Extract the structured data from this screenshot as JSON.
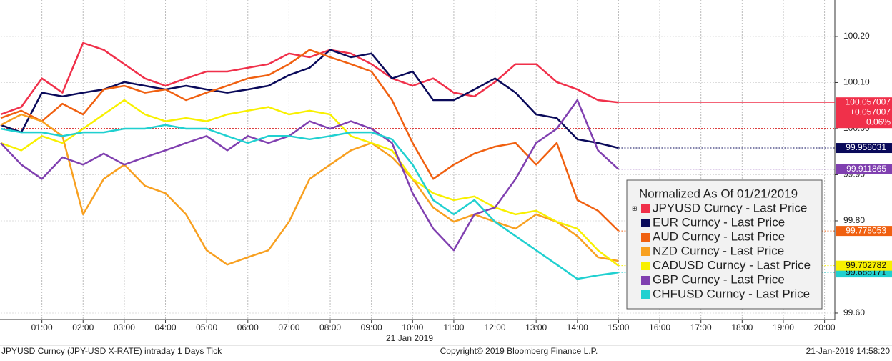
{
  "chart_data": {
    "type": "line",
    "x_axis_label": "21 Jan 2019",
    "legend_title": "Normalized As Of 01/21/2019",
    "legend_position": "lower right",
    "grid": true,
    "reference_lines": [
      100
    ],
    "change_labels": [
      "+0.057007",
      "0.06%"
    ],
    "footer_left": "JPYUSD Curncy (JPY-USD X-RATE) intraday 1 Days  Tick",
    "footer_center": "Copyright© 2019 Bloomberg Finance L.P.",
    "footer_right": "21-Jan-2019 14:58:20",
    "xlim": [
      0,
      20.25
    ],
    "xticks": [
      {
        "value": 1,
        "label": "01:00"
      },
      {
        "value": 2,
        "label": "02:00"
      },
      {
        "value": 3,
        "label": "03:00"
      },
      {
        "value": 4,
        "label": "04:00"
      },
      {
        "value": 5,
        "label": "05:00"
      },
      {
        "value": 6,
        "label": "06:00"
      },
      {
        "value": 7,
        "label": "07:00"
      },
      {
        "value": 8,
        "label": "08:00"
      },
      {
        "value": 9,
        "label": "09:00"
      },
      {
        "value": 10,
        "label": "10:00"
      },
      {
        "value": 11,
        "label": "11:00"
      },
      {
        "value": 12,
        "label": "12:00"
      },
      {
        "value": 13,
        "label": "13:00"
      },
      {
        "value": 14,
        "label": "14:00"
      },
      {
        "value": 15,
        "label": "15:00"
      },
      {
        "value": 16,
        "label": "16:00"
      },
      {
        "value": 17,
        "label": "17:00"
      },
      {
        "value": 18,
        "label": "18:00"
      },
      {
        "value": 19,
        "label": "19:00"
      },
      {
        "value": 20,
        "label": "20:00"
      }
    ],
    "ylim": [
      99.586,
      100.279
    ],
    "yticks": [
      {
        "value": 99.6,
        "label": "99.60"
      },
      {
        "value": 99.7,
        "label": "99.70"
      },
      {
        "value": 99.8,
        "label": "99.80"
      },
      {
        "value": 99.9,
        "label": "99.90"
      },
      {
        "value": 100,
        "label": "100.00"
      },
      {
        "value": 100.1,
        "label": "100.10"
      },
      {
        "value": 100.2,
        "label": "100.20"
      }
    ],
    "x": [
      0,
      0.5,
      1,
      1.5,
      2,
      2.5,
      3,
      3.5,
      4,
      4.5,
      5,
      5.5,
      6,
      6.5,
      7,
      7.5,
      8,
      8.5,
      9,
      9.5,
      10,
      10.5,
      11,
      11.5,
      12,
      12.5,
      13,
      13.5,
      14,
      14.5,
      15
    ],
    "series": [
      {
        "name": "JPYUSD Curncy - Last Price",
        "color": "#f0304a",
        "last_label": "100.057007",
        "values": [
          100.031,
          100.047,
          100.109,
          100.078,
          100.186,
          100.171,
          100.14,
          100.109,
          100.093,
          100.109,
          100.124,
          100.124,
          100.132,
          100.14,
          100.163,
          100.155,
          100.171,
          100.163,
          100.14,
          100.109,
          100.093,
          100.109,
          100.078,
          100.07,
          100.101,
          100.14,
          100.14,
          100.101,
          100.085,
          100.062,
          100.057007
        ]
      },
      {
        "name": "EUR Curncy - Last Price",
        "color": "#0a0a5a",
        "last_label": "99.958031",
        "values": [
          100.008,
          99.992,
          100.078,
          100.07,
          100.078,
          100.085,
          100.101,
          100.093,
          100.085,
          100.093,
          100.085,
          100.078,
          100.085,
          100.093,
          100.116,
          100.132,
          100.171,
          100.155,
          100.163,
          100.109,
          100.124,
          100.062,
          100.062,
          100.085,
          100.109,
          100.078,
          100.031,
          100.023,
          99.977,
          99.969,
          99.958031
        ]
      },
      {
        "name": "AUD Curncy - Last Price",
        "color": "#f06010",
        "last_label": "99.778053",
        "values": [
          100.023,
          100.039,
          100.016,
          100.054,
          100.031,
          100.085,
          100.093,
          100.078,
          100.085,
          100.062,
          100.078,
          100.093,
          100.109,
          100.116,
          100.14,
          100.171,
          100.155,
          100.14,
          100.124,
          100.062,
          99.969,
          99.891,
          99.922,
          99.946,
          99.961,
          99.969,
          99.922,
          99.969,
          99.845,
          99.822,
          99.778053
        ]
      },
      {
        "name": "NZD Curncy - Last Price",
        "color": "#f8a020",
        "values": [
          100.008,
          100.031,
          100.016,
          99.984,
          99.814,
          99.891,
          99.922,
          99.876,
          99.86,
          99.814,
          99.736,
          99.705,
          99.721,
          99.736,
          99.798,
          99.891,
          99.922,
          99.953,
          99.969,
          99.938,
          99.891,
          99.829,
          99.798,
          99.814,
          99.798,
          99.783,
          99.814,
          99.798,
          99.767,
          99.721,
          99.713
        ]
      },
      {
        "name": "CADUSD Curncy - Last Price",
        "color": "#f8f000",
        "last_label": "99.702782",
        "values": [
          99.969,
          99.953,
          99.984,
          99.969,
          100.0,
          100.031,
          100.062,
          100.031,
          100.016,
          100.023,
          100.016,
          100.031,
          100.039,
          100.047,
          100.031,
          100.039,
          100.031,
          99.984,
          99.969,
          99.953,
          99.891,
          99.86,
          99.845,
          99.853,
          99.829,
          99.814,
          99.822,
          99.798,
          99.783,
          99.736,
          99.702782
        ]
      },
      {
        "name": "GBP Curncy - Last Price",
        "color": "#8040b0",
        "last_label": "99.911865",
        "values": [
          99.969,
          99.922,
          99.891,
          99.938,
          99.922,
          99.946,
          99.922,
          99.938,
          99.953,
          99.969,
          99.984,
          99.953,
          99.984,
          99.969,
          99.984,
          100.016,
          100.0,
          100.016,
          100.0,
          99.969,
          99.86,
          99.783,
          99.736,
          99.814,
          99.829,
          99.891,
          99.969,
          100.0,
          100.062,
          99.953,
          99.911865
        ]
      },
      {
        "name": "CHFUSD Curncy - Last Price",
        "color": "#20d0d0",
        "last_label": "99.688171",
        "values": [
          100.0,
          99.992,
          99.992,
          99.984,
          99.992,
          99.992,
          100.0,
          100.0,
          100.008,
          100.0,
          100.0,
          99.984,
          99.969,
          99.984,
          99.984,
          99.977,
          99.984,
          99.992,
          99.992,
          99.977,
          99.922,
          99.845,
          99.814,
          99.845,
          99.798,
          99.767,
          99.736,
          99.705,
          99.674,
          99.682,
          99.688171
        ]
      }
    ]
  }
}
